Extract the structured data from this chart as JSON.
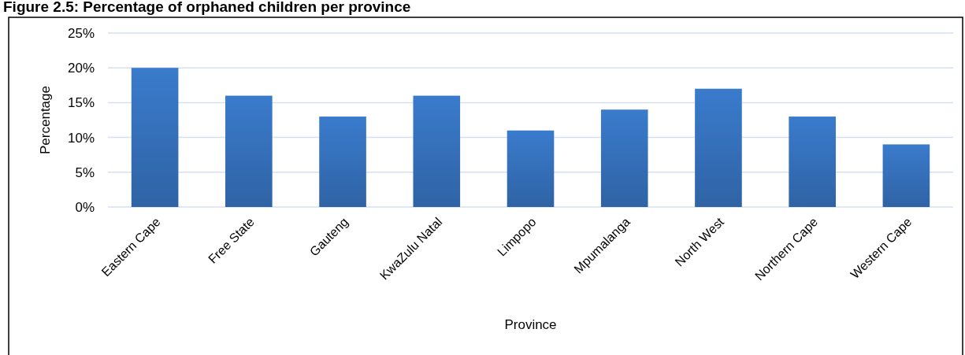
{
  "chart_data": {
    "type": "bar",
    "title": "Figure 2.5: Percentage of orphaned children per province",
    "xlabel": "Province",
    "ylabel": "Percentage",
    "categories": [
      "Eastern Cape",
      "Free State",
      "Gauteng",
      "KwaZulu Natal",
      "Limpopo",
      "Mpumalanga",
      "North West",
      "Northern Cape",
      "Western Cape"
    ],
    "values": [
      20,
      16,
      13,
      16,
      11,
      14,
      17,
      13,
      9
    ],
    "color": "#3a7bcc",
    "ylim": [
      0,
      25
    ],
    "yticks": [
      {
        "value": 0,
        "label": "0%"
      },
      {
        "value": 5,
        "label": "5%"
      },
      {
        "value": 10,
        "label": "10%"
      },
      {
        "value": 15,
        "label": "15%"
      },
      {
        "value": 20,
        "label": "20%"
      },
      {
        "value": 25,
        "label": "25%"
      }
    ],
    "grid": "y"
  }
}
